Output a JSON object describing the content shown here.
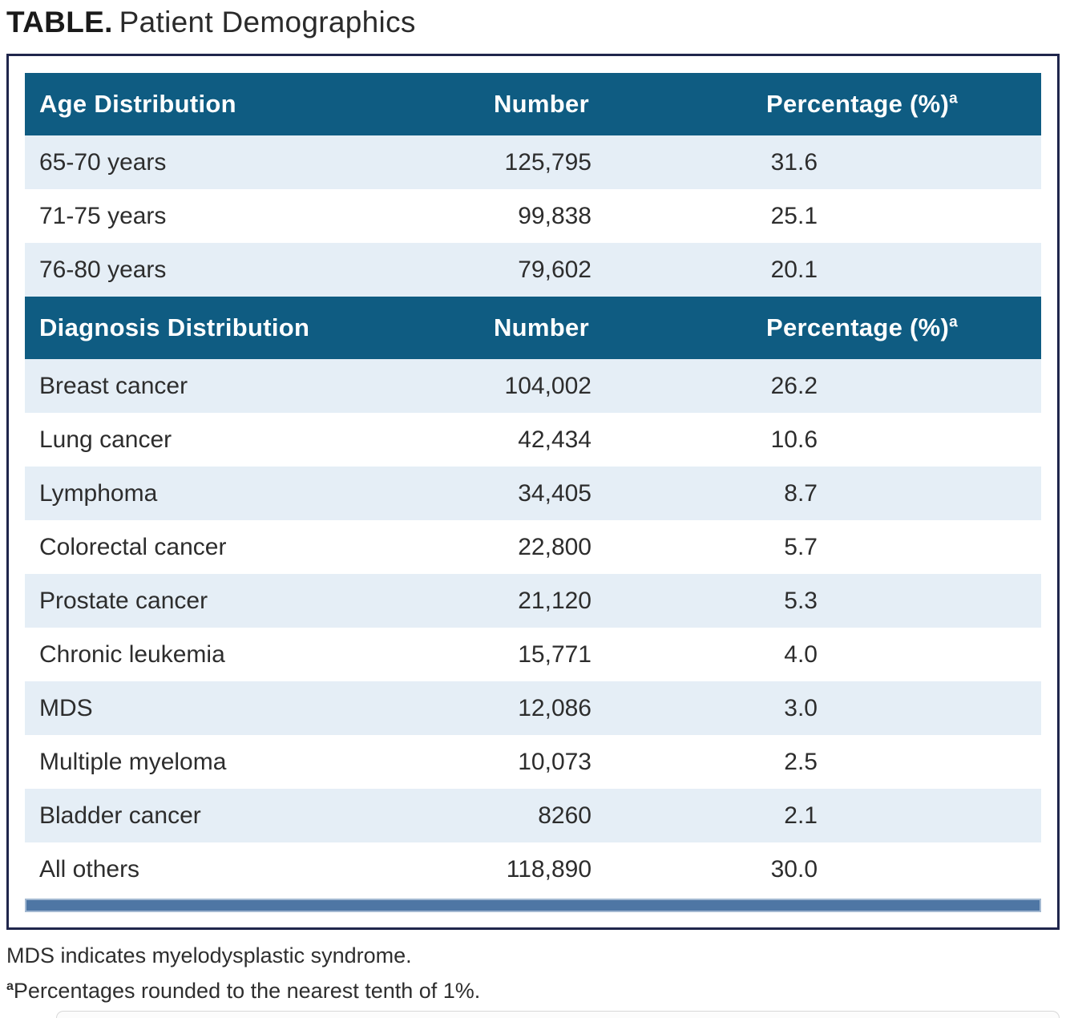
{
  "title": {
    "prefix": "TABLE.",
    "main": "Patient Demographics"
  },
  "table": {
    "sections": [
      {
        "header": {
          "label": "Age Distribution",
          "number": "Number",
          "percentage": "Percentage (%)",
          "sup": "a"
        },
        "rows": [
          {
            "label": "65-70 years",
            "number": "125,795",
            "percent": "31.6"
          },
          {
            "label": "71-75 years",
            "number": "99,838",
            "percent": "25.1"
          },
          {
            "label": "76-80 years",
            "number": "79,602",
            "percent": "20.1"
          }
        ]
      },
      {
        "header": {
          "label": "Diagnosis Distribution",
          "number": "Number",
          "percentage": "Percentage (%)",
          "sup": "a"
        },
        "rows": [
          {
            "label": "Breast cancer",
            "number": "104,002",
            "percent": "26.2"
          },
          {
            "label": "Lung cancer",
            "number": "42,434",
            "percent": "10.6"
          },
          {
            "label": "Lymphoma",
            "number": "34,405",
            "percent": "8.7"
          },
          {
            "label": "Colorectal cancer",
            "number": "22,800",
            "percent": "5.7"
          },
          {
            "label": "Prostate cancer",
            "number": "21,120",
            "percent": "5.3"
          },
          {
            "label": "Chronic leukemia",
            "number": "15,771",
            "percent": "4.0"
          },
          {
            "label": "MDS",
            "number": "12,086",
            "percent": "3.0"
          },
          {
            "label": "Multiple myeloma",
            "number": "10,073",
            "percent": "2.5"
          },
          {
            "label": "Bladder cancer",
            "number": "8260",
            "percent": "2.1"
          },
          {
            "label": "All others",
            "number": "118,890",
            "percent": "30.0"
          }
        ]
      }
    ]
  },
  "footnotes": [
    {
      "sup": "",
      "text": "MDS indicates myelodysplastic syndrome."
    },
    {
      "sup": "a",
      "text": "Percentages rounded to the nearest tenth of 1%."
    }
  ],
  "colors": {
    "header_bg": "#0F5C82",
    "row_alt_bg": "#E5EEF6",
    "accent_bar": "#4E76A4",
    "accent_bar_edge": "#A2B8D1",
    "box_border": "#20264C",
    "text": "#2d2d2d"
  }
}
